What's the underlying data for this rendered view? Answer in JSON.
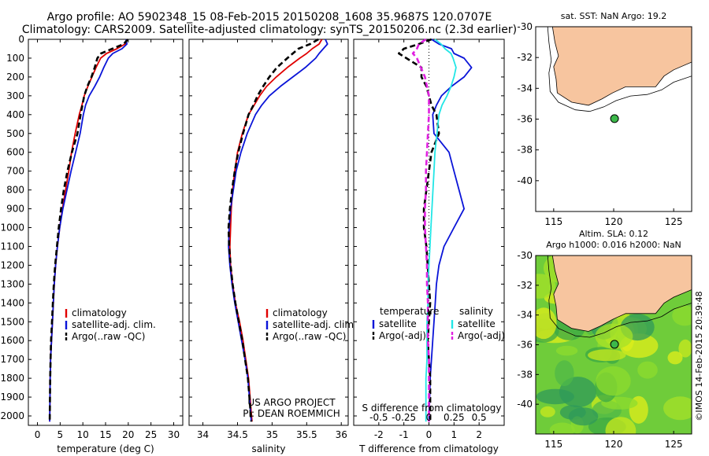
{
  "header": {
    "title_line1": "Argo profile: AO 5902348_15 08-Feb-2015 20150208_1608 35.9687S 120.0707E",
    "title_line2": "Climatology: CARS2009. Satellite-adjusted climatology: synTS_20150206.nc (2.3d earlier)"
  },
  "colors": {
    "climatology": "#e00000",
    "satellite": "#0a14d8",
    "argo": "#000000",
    "sal_satellite": "#22e6e6",
    "sal_argo": "#e020e0",
    "land": "#f7c59f",
    "float_marker": "#3cb84a"
  },
  "credit": "©IMOS 14-Feb-2015 20:39:48",
  "chart_data": [
    {
      "id": "temperature",
      "type": "line",
      "xlabel": "temperature (deg C)",
      "ylabel": "",
      "xlim": [
        -2,
        32
      ],
      "ylim": [
        2050,
        0
      ],
      "xticks": [
        0,
        5,
        10,
        15,
        20,
        25,
        30
      ],
      "yticks": [
        0,
        100,
        200,
        300,
        400,
        500,
        600,
        700,
        800,
        900,
        1000,
        1100,
        1200,
        1300,
        1400,
        1500,
        1600,
        1700,
        1800,
        1900,
        2000
      ],
      "series": [
        {
          "name": "climatology",
          "style": "solid",
          "color": "#e00000",
          "x": [
            19.8,
            19.3,
            17.5,
            15.2,
            13.9,
            12.9,
            12.0,
            11.1,
            10.3,
            9.8,
            9.2,
            8.3,
            7.5,
            6.9,
            6.2,
            5.5,
            4.9,
            4.4,
            4.0,
            3.7,
            3.5,
            3.3,
            3.1,
            2.9,
            2.8,
            2.7
          ],
          "y": [
            0,
            25,
            50,
            75,
            100,
            150,
            200,
            250,
            300,
            350,
            400,
            500,
            600,
            700,
            800,
            900,
            1000,
            1100,
            1200,
            1300,
            1400,
            1500,
            1600,
            1700,
            1800,
            2030
          ]
        },
        {
          "name": "satellite-adj. clim.",
          "style": "solid",
          "color": "#0a14d8",
          "x": [
            19.5,
            19.7,
            18.6,
            16.6,
            15.6,
            14.6,
            13.7,
            12.6,
            11.4,
            10.6,
            10.1,
            9.4,
            8.4,
            7.4,
            6.5,
            5.6,
            4.9,
            4.4,
            4.0,
            3.7,
            3.5,
            3.3,
            3.1,
            2.9,
            2.8,
            2.7
          ],
          "y": [
            0,
            25,
            50,
            75,
            100,
            150,
            200,
            250,
            300,
            350,
            400,
            500,
            600,
            700,
            800,
            900,
            1000,
            1100,
            1200,
            1300,
            1400,
            1500,
            1600,
            1700,
            1800,
            2030
          ]
        },
        {
          "name": "Argo(..raw -QC)",
          "style": "dashed",
          "color": "#000000",
          "x": [
            19.9,
            19.0,
            16.5,
            14.0,
            13.2,
            12.6,
            11.9,
            11.0,
            10.3,
            9.9,
            9.5,
            8.8,
            7.6,
            6.6,
            5.8,
            5.2,
            4.7,
            4.3,
            3.9,
            3.6,
            3.4,
            3.2,
            3.0,
            2.9,
            2.8,
            2.7
          ],
          "y": [
            0,
            25,
            50,
            75,
            100,
            150,
            200,
            250,
            300,
            350,
            400,
            500,
            600,
            700,
            800,
            900,
            1000,
            1100,
            1200,
            1300,
            1400,
            1500,
            1600,
            1700,
            1800,
            2030
          ]
        }
      ],
      "legend": [
        "climatology",
        "satellite-adj. clim.",
        "Argo(..raw -QC)"
      ]
    },
    {
      "id": "salinity",
      "type": "line",
      "xlabel": "salinity",
      "xlim": [
        33.8,
        36.1
      ],
      "ylim": [
        2050,
        0
      ],
      "xticks": [
        34,
        34.5,
        35,
        35.5,
        36
      ],
      "series": [
        {
          "name": "climatology",
          "style": "solid",
          "color": "#e00000",
          "x": [
            35.72,
            35.68,
            35.58,
            35.5,
            35.4,
            35.22,
            35.06,
            34.92,
            34.82,
            34.74,
            34.66,
            34.57,
            34.5,
            34.46,
            34.43,
            34.41,
            34.4,
            34.39,
            34.4,
            34.43,
            34.47,
            34.53,
            34.58,
            34.62,
            34.66,
            34.71
          ],
          "y": [
            0,
            25,
            50,
            75,
            100,
            150,
            200,
            250,
            300,
            350,
            400,
            500,
            600,
            700,
            800,
            900,
            1000,
            1100,
            1200,
            1300,
            1400,
            1500,
            1600,
            1700,
            1800,
            2030
          ]
        },
        {
          "name": "satellite-adj. clim.",
          "style": "solid",
          "color": "#0a14d8",
          "x": [
            35.77,
            35.8,
            35.74,
            35.68,
            35.63,
            35.48,
            35.3,
            35.12,
            34.96,
            34.85,
            34.76,
            34.64,
            34.55,
            34.48,
            34.44,
            34.4,
            34.38,
            34.37,
            34.39,
            34.42,
            34.46,
            34.51,
            34.56,
            34.61,
            34.65,
            34.7
          ],
          "y": [
            0,
            25,
            50,
            75,
            100,
            150,
            200,
            250,
            300,
            350,
            400,
            500,
            600,
            700,
            800,
            900,
            1000,
            1100,
            1200,
            1300,
            1400,
            1500,
            1600,
            1700,
            1800,
            2030
          ]
        },
        {
          "name": "Argo(..raw -QC)",
          "style": "dashed",
          "color": "#000000",
          "x": [
            35.67,
            35.55,
            35.38,
            35.3,
            35.22,
            35.07,
            34.96,
            34.87,
            34.79,
            34.73,
            34.66,
            34.58,
            34.51,
            34.46,
            34.42,
            34.39,
            34.37,
            34.38,
            34.4,
            34.43,
            34.47,
            34.52,
            34.57,
            34.61,
            34.65,
            34.7
          ],
          "y": [
            0,
            25,
            50,
            75,
            100,
            150,
            200,
            250,
            300,
            350,
            400,
            500,
            600,
            700,
            800,
            900,
            1000,
            1100,
            1200,
            1300,
            1400,
            1500,
            1600,
            1700,
            1800,
            2030
          ]
        }
      ],
      "legend": [
        "climatology",
        "satellite-adj. clim.",
        "Argo(..raw -QC)"
      ],
      "annotation": [
        "US ARGO PROJECT",
        "PI: DEAN ROEMMICH"
      ]
    },
    {
      "id": "difference",
      "type": "line",
      "xlabel": "T difference from climatology",
      "xlabel_top": "S difference from climatology",
      "xlim": [
        -3.0,
        3.0
      ],
      "ylim": [
        2050,
        0
      ],
      "xticks": [
        -2,
        -1,
        0,
        1,
        2
      ],
      "xticks_top": {
        "values": [
          -0.5,
          -0.25,
          0,
          0.25,
          0.5
        ],
        "labels": [
          "-0.5",
          "-0.25",
          "0",
          "0.25",
          "0.5"
        ]
      },
      "series": [
        {
          "name": "temperature satellite",
          "style": "solid",
          "color": "#0a14d8",
          "x": [
            0.1,
            0.4,
            0.9,
            1.0,
            1.4,
            1.7,
            1.4,
            0.9,
            0.5,
            0.3,
            0.15,
            0.2,
            0.8,
            1.0,
            1.2,
            1.4,
            1.0,
            0.6,
            0.4,
            0.3,
            0.25,
            0.2,
            0.15,
            0.1,
            0.05,
            0.0
          ],
          "y": [
            0,
            25,
            50,
            75,
            100,
            150,
            200,
            250,
            300,
            350,
            400,
            500,
            600,
            700,
            800,
            900,
            1000,
            1100,
            1200,
            1300,
            1400,
            1500,
            1600,
            1700,
            1800,
            2030
          ]
        },
        {
          "name": "temperature Argo(-adj)",
          "style": "dashed",
          "color": "#000000",
          "x": [
            0.1,
            -0.4,
            -1.0,
            -1.2,
            -0.9,
            -0.3,
            -0.3,
            -0.1,
            0.0,
            0.1,
            0.3,
            0.4,
            0.1,
            0.0,
            -0.1,
            -0.2,
            -0.2,
            -0.1,
            -0.05,
            0.0,
            0.05,
            0.0,
            -0.05,
            0.0,
            0.05,
            0.05
          ],
          "y": [
            0,
            25,
            50,
            75,
            100,
            150,
            200,
            250,
            300,
            350,
            400,
            500,
            600,
            700,
            800,
            900,
            1000,
            1100,
            1200,
            1300,
            1400,
            1500,
            1600,
            1700,
            1800,
            2030
          ]
        },
        {
          "name": "salinity satellite",
          "style": "solid",
          "color": "#22e6e6",
          "x": [
            0.06,
            0.12,
            0.16,
            0.22,
            0.24,
            0.27,
            0.25,
            0.22,
            0.18,
            0.13,
            0.1,
            0.08,
            0.06,
            0.05,
            0.04,
            0.03,
            0.02,
            0.01,
            0.0,
            -0.01,
            -0.01,
            -0.02,
            -0.02,
            -0.02,
            -0.03,
            -0.03
          ],
          "y": [
            0,
            25,
            50,
            75,
            100,
            150,
            200,
            250,
            300,
            350,
            400,
            500,
            600,
            700,
            800,
            900,
            1000,
            1100,
            1200,
            1300,
            1400,
            1500,
            1600,
            1700,
            1800,
            2030
          ]
        },
        {
          "name": "salinity Argo(-adj)",
          "style": "dashed",
          "color": "#e020e0",
          "x": [
            -0.03,
            -0.1,
            -0.12,
            -0.16,
            -0.12,
            -0.08,
            -0.04,
            -0.02,
            0.0,
            0.0,
            0.0,
            -0.01,
            -0.02,
            -0.03,
            -0.03,
            -0.04,
            -0.04,
            -0.03,
            -0.02,
            -0.02,
            -0.01,
            -0.01,
            -0.01,
            0.0,
            0.0,
            0.0
          ],
          "y": [
            0,
            25,
            50,
            75,
            100,
            150,
            200,
            250,
            300,
            350,
            400,
            500,
            600,
            700,
            800,
            900,
            1000,
            1100,
            1200,
            1300,
            1400,
            1500,
            1600,
            1700,
            1800,
            2030
          ]
        }
      ],
      "legend_temperature": {
        "title": "temperature",
        "items": [
          "satellite",
          "Argo(-adj)"
        ]
      },
      "legend_salinity": {
        "title": "salinity",
        "items": [
          "satellite",
          "Argo(-adj)"
        ]
      }
    },
    {
      "id": "map_sst",
      "type": "map",
      "title": "sat. SST: NaN Argo: 19.2",
      "xlim": [
        113.5,
        126.5
      ],
      "ylim": [
        -42,
        -30
      ],
      "xticks": [
        115,
        120,
        125
      ],
      "yticks": [
        -30,
        -32,
        -34,
        -36,
        -38,
        -40
      ],
      "float": {
        "lon": 120.07,
        "lat": -35.97
      }
    },
    {
      "id": "map_sla",
      "type": "map",
      "title_line1": "Altim. SLA: 0.12",
      "title_line2": "Argo h1000: 0.016 h2000: NaN",
      "xlim": [
        113.5,
        126.5
      ],
      "ylim": [
        -42,
        -30
      ],
      "xticks": [
        115,
        120,
        125
      ],
      "yticks": [
        -30,
        -32,
        -34,
        -36,
        -38,
        -40
      ],
      "float": {
        "lon": 120.07,
        "lat": -35.97
      }
    }
  ]
}
